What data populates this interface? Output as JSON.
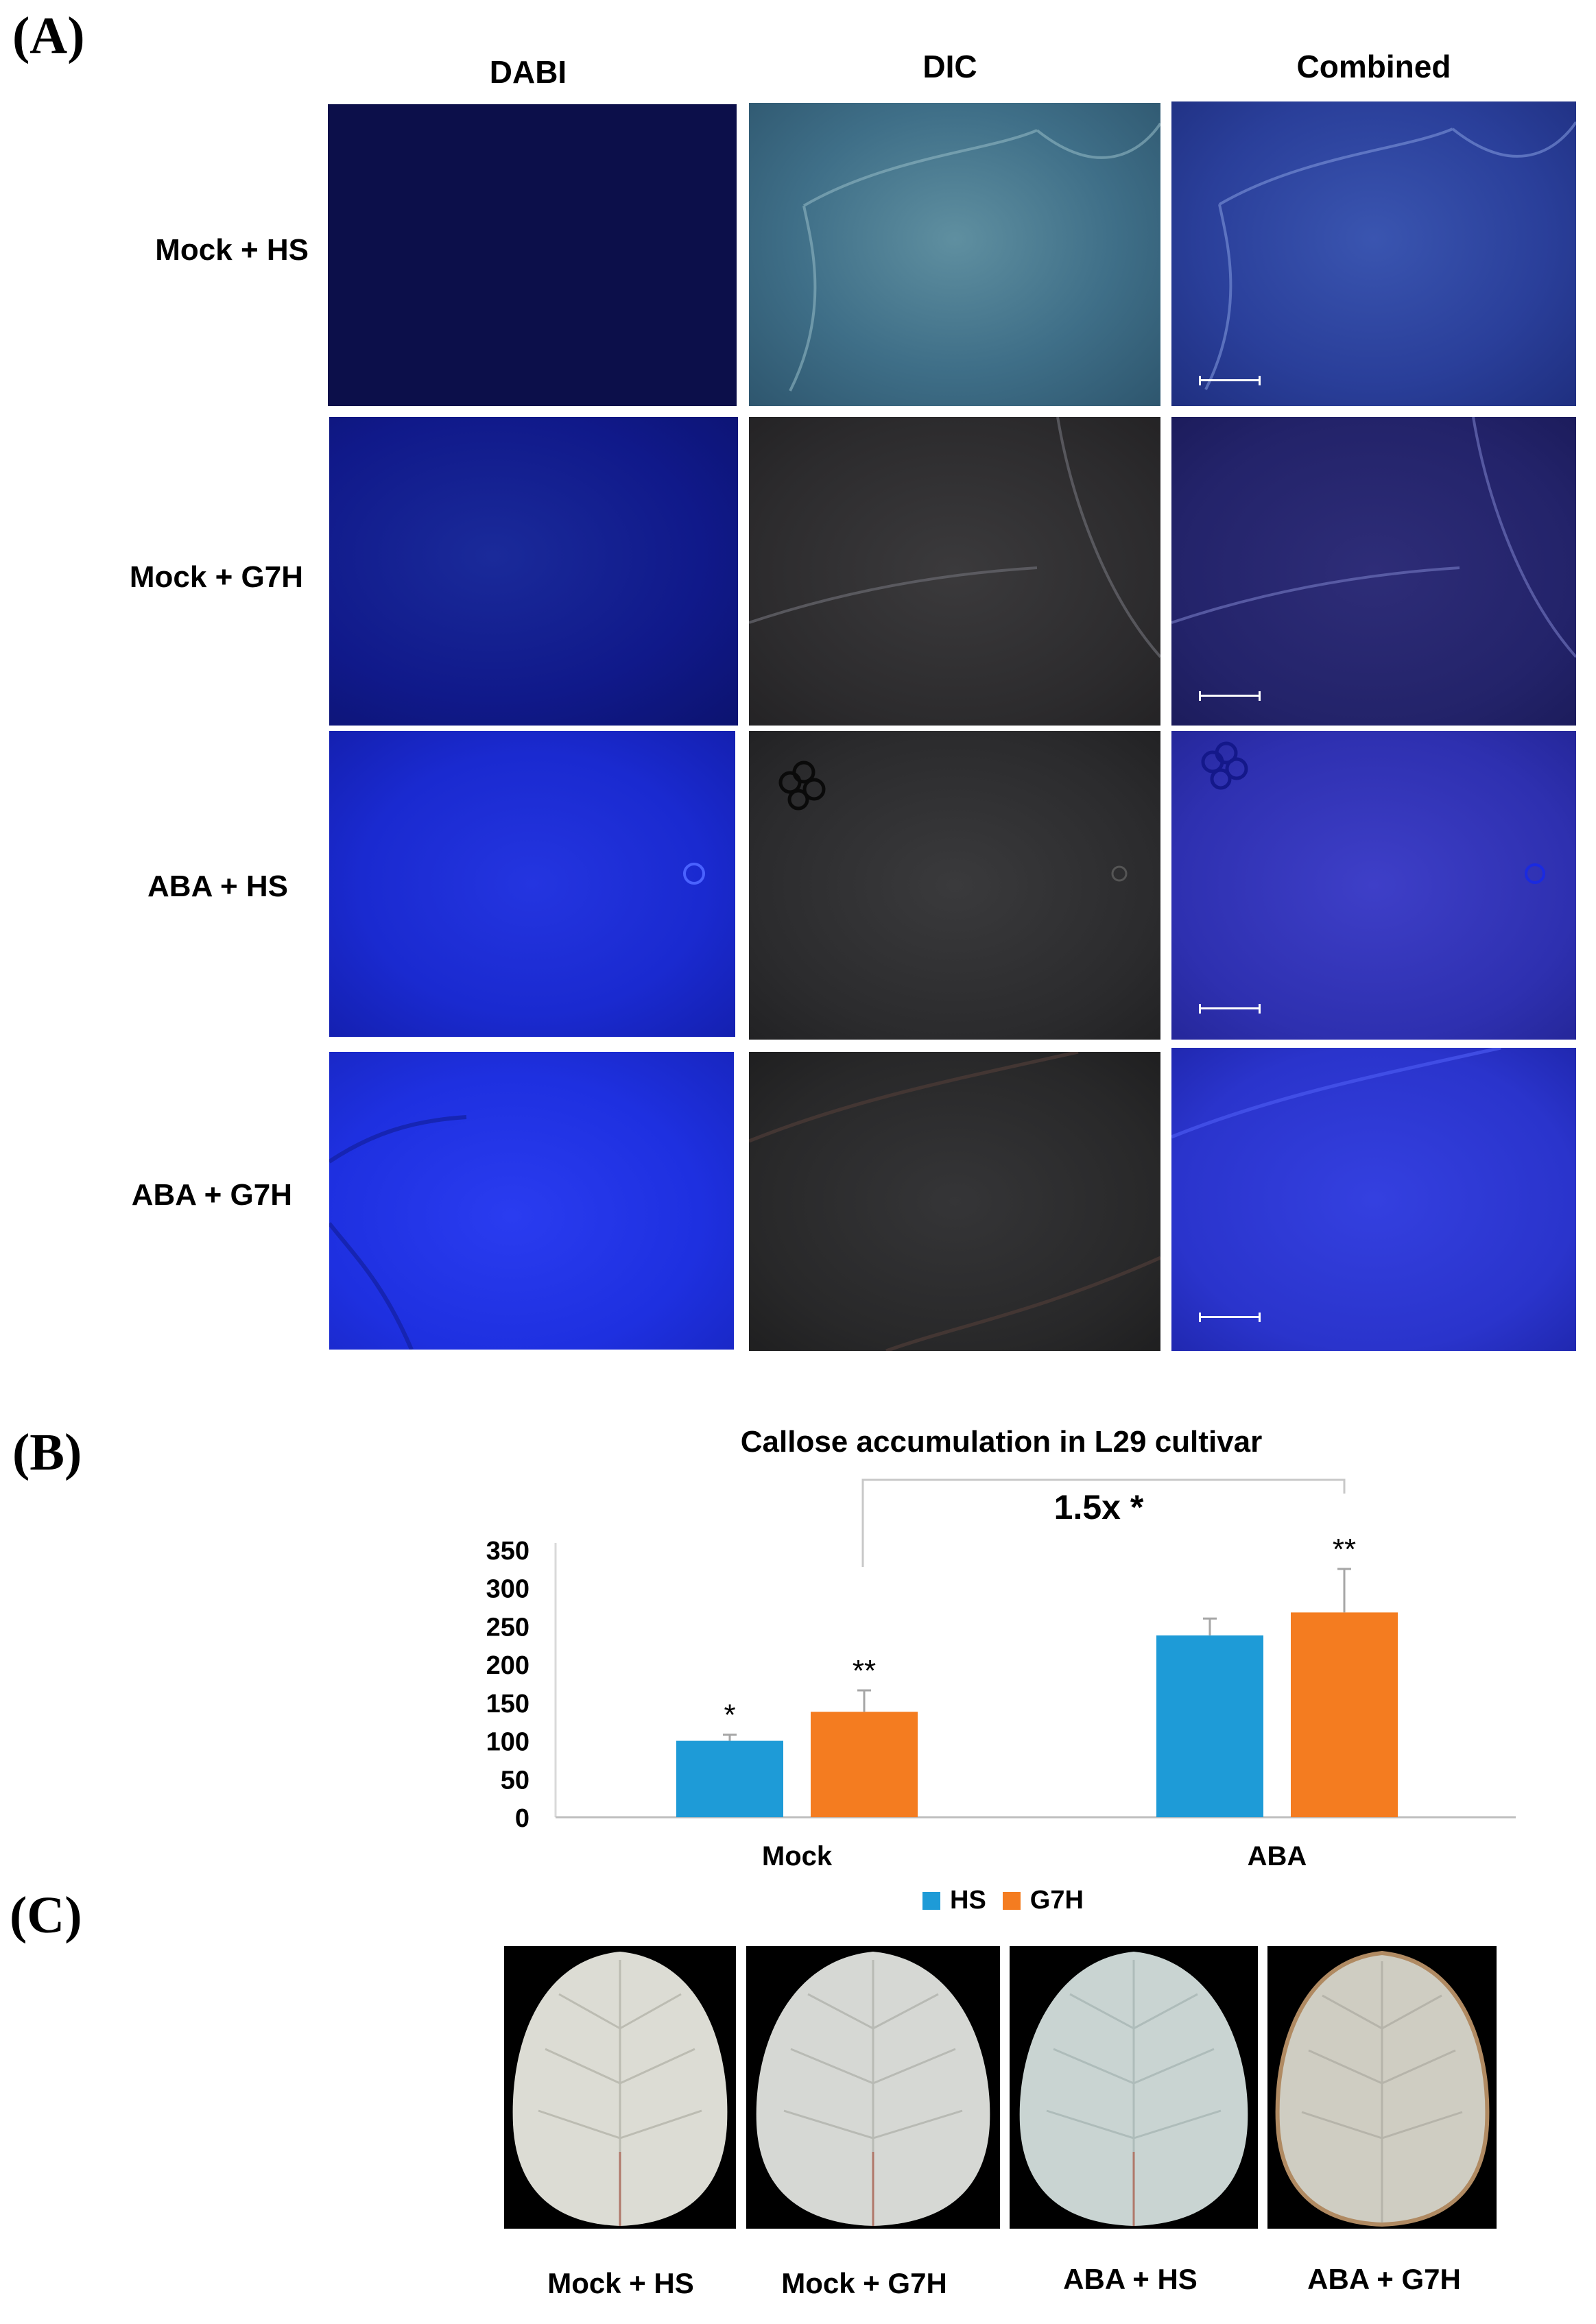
{
  "panel_a": {
    "letter": "(A)",
    "columns": [
      "DABI",
      "DIC",
      "Combined"
    ],
    "rows": [
      "Mock + HS",
      "Mock + G7H",
      "ABA + HS",
      "ABA + G7H"
    ]
  },
  "panel_b": {
    "letter": "(B)",
    "comparison_label": "1.5x *"
  },
  "chart_data": {
    "type": "bar",
    "title": "Callose accumulation in L29 cultivar",
    "categories": [
      "Mock",
      "ABA"
    ],
    "series": [
      {
        "name": "HS",
        "color": "#1e9bd7",
        "values": [
          100,
          238
        ],
        "errors": [
          8,
          22
        ],
        "significance": [
          "*",
          ""
        ]
      },
      {
        "name": "G7H",
        "color": "#f47c20",
        "values": [
          138,
          268
        ],
        "errors": [
          28,
          57
        ],
        "significance": [
          "**",
          "**"
        ]
      }
    ],
    "ylim": [
      0,
      350
    ],
    "yticks": [
      0,
      50,
      100,
      150,
      200,
      250,
      300,
      350
    ],
    "xlabel": "",
    "ylabel": "",
    "legend": "bottom"
  },
  "panel_c": {
    "letter": "(C)",
    "labels": [
      "Mock + HS",
      "Mock + G7H",
      "ABA + HS",
      "ABA + G7H"
    ]
  }
}
